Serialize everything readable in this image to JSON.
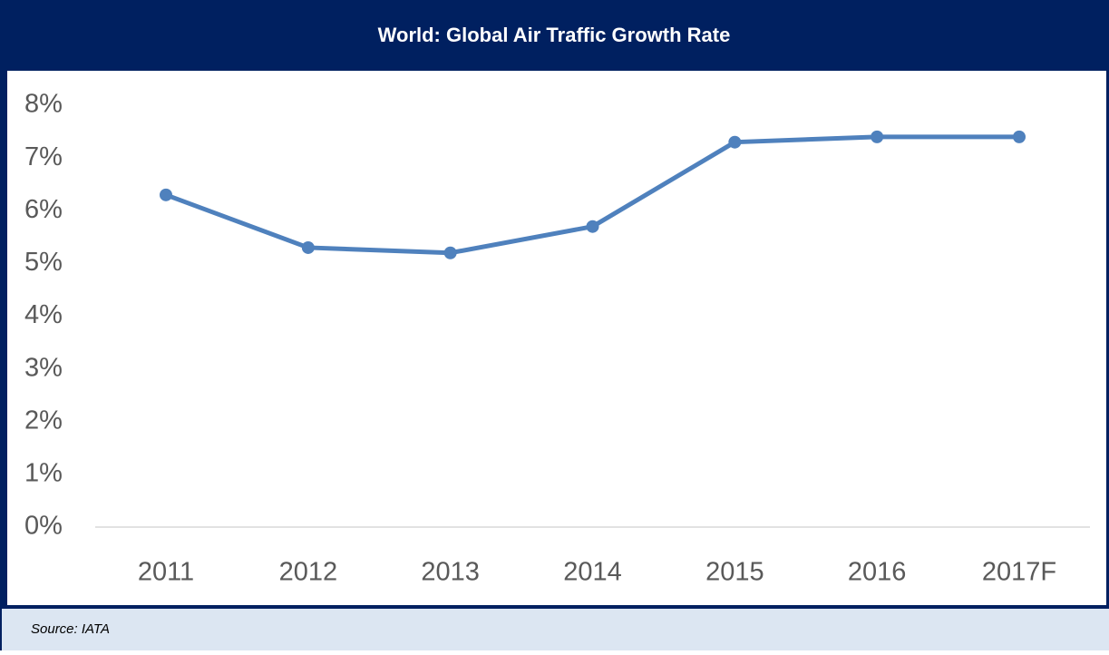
{
  "chart_data": {
    "type": "line",
    "title": "World: Global Air Traffic Growth Rate",
    "categories": [
      "2011",
      "2012",
      "2013",
      "2014",
      "2015",
      "2016",
      "2017F"
    ],
    "values": [
      6.3,
      5.3,
      5.2,
      5.7,
      7.3,
      7.4,
      7.4
    ],
    "color": "#4f81bd",
    "ylim": [
      0,
      8
    ],
    "yticks": [
      {
        "value": 0,
        "label": "0%"
      },
      {
        "value": 1,
        "label": "1%"
      },
      {
        "value": 2,
        "label": "2%"
      },
      {
        "value": 3,
        "label": "3%"
      },
      {
        "value": 4,
        "label": "4%"
      },
      {
        "value": 5,
        "label": "5%"
      },
      {
        "value": 6,
        "label": "6%"
      },
      {
        "value": 7,
        "label": "7%"
      },
      {
        "value": 8,
        "label": "8%"
      }
    ],
    "grid": false,
    "source": "Source: IATA"
  }
}
